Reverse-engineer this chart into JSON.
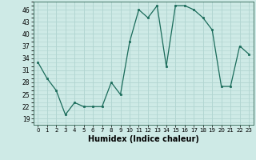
{
  "x": [
    0,
    1,
    2,
    3,
    4,
    5,
    6,
    7,
    8,
    9,
    10,
    11,
    12,
    13,
    14,
    15,
    16,
    17,
    18,
    19,
    20,
    21,
    22,
    23
  ],
  "y": [
    33,
    29,
    26,
    20,
    23,
    22,
    22,
    22,
    28,
    25,
    38,
    46,
    44,
    47,
    32,
    47,
    47,
    46,
    44,
    41,
    27,
    27,
    37,
    35
  ],
  "line_color": "#1a6b5a",
  "marker": "s",
  "marker_size": 2.0,
  "bg_color": "#ceeae6",
  "grid_color": "#b0d4d0",
  "xlabel": "Humidex (Indice chaleur)",
  "xlabel_fontsize": 7.0,
  "ylabel_ticks": [
    19,
    22,
    25,
    28,
    31,
    34,
    37,
    40,
    43,
    46
  ],
  "xtick_labels": [
    "0",
    "1",
    "2",
    "3",
    "4",
    "5",
    "6",
    "7",
    "8",
    "9",
    "10",
    "11",
    "12",
    "13",
    "14",
    "15",
    "16",
    "17",
    "18",
    "19",
    "20",
    "21",
    "22",
    "23"
  ],
  "ylim": [
    17.5,
    48
  ],
  "xlim": [
    -0.5,
    23.5
  ]
}
